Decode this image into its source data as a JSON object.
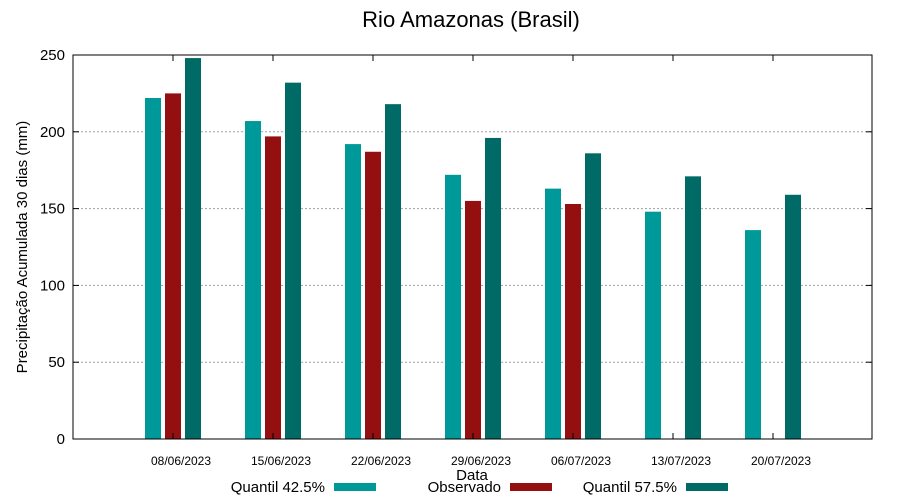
{
  "chart_data": {
    "type": "bar",
    "title": "Rio Amazonas (Brasil)",
    "xlabel": "Data",
    "ylabel": "Precipitação Acumulada 30 dias (mm)",
    "ylim": [
      0,
      250
    ],
    "yticks": [
      0,
      50,
      100,
      150,
      200,
      250
    ],
    "grid": true,
    "legend_position": "bottom",
    "categories": [
      "08/06/2023",
      "15/06/2023",
      "22/06/2023",
      "29/06/2023",
      "06/07/2023",
      "13/07/2023",
      "20/07/2023"
    ],
    "series": [
      {
        "name": "Quantil 42.5%",
        "color": "#009999",
        "values": [
          222,
          207,
          192,
          172,
          163,
          148,
          136
        ]
      },
      {
        "name": "Observado",
        "color": "#940f0f",
        "values": [
          225,
          197,
          187,
          155,
          153,
          null,
          null
        ]
      },
      {
        "name": "Quantil 57.5%",
        "color": "#006a66",
        "values": [
          248,
          232,
          218,
          196,
          186,
          171,
          159
        ]
      }
    ]
  }
}
